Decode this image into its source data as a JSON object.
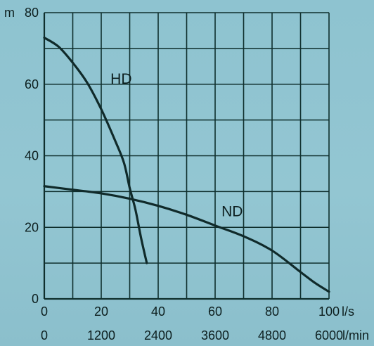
{
  "chart_data": {
    "type": "line",
    "title": "",
    "ylabel": "m",
    "x_unit_primary": "l/s",
    "x_unit_secondary": "l/min",
    "xlim": [
      0,
      100
    ],
    "ylim": [
      0,
      80
    ],
    "grid": true,
    "x_ticks": [
      "0",
      "20",
      "40",
      "60",
      "80",
      "100"
    ],
    "x2_ticks": [
      "0",
      "1200",
      "2400",
      "3600",
      "4800",
      "6000"
    ],
    "y_ticks": [
      "0",
      "20",
      "40",
      "60",
      "80"
    ],
    "series": [
      {
        "name": "HD",
        "x": [
          0,
          5,
          10,
          15,
          20,
          25,
          28,
          30,
          32,
          34,
          36
        ],
        "y": [
          73,
          70.5,
          66,
          60.5,
          53,
          44,
          38,
          31,
          25,
          17,
          10
        ]
      },
      {
        "name": "ND",
        "x": [
          0,
          10,
          20,
          30,
          40,
          50,
          60,
          70,
          80,
          90,
          95,
          100
        ],
        "y": [
          31.5,
          30.5,
          29.5,
          28,
          26,
          23.5,
          20.5,
          17.5,
          13.5,
          7.5,
          4.5,
          2
        ]
      }
    ],
    "colors": {
      "curve": "#102a2a",
      "grid": "#0f2f2d",
      "background": "#8fc2cf"
    }
  }
}
